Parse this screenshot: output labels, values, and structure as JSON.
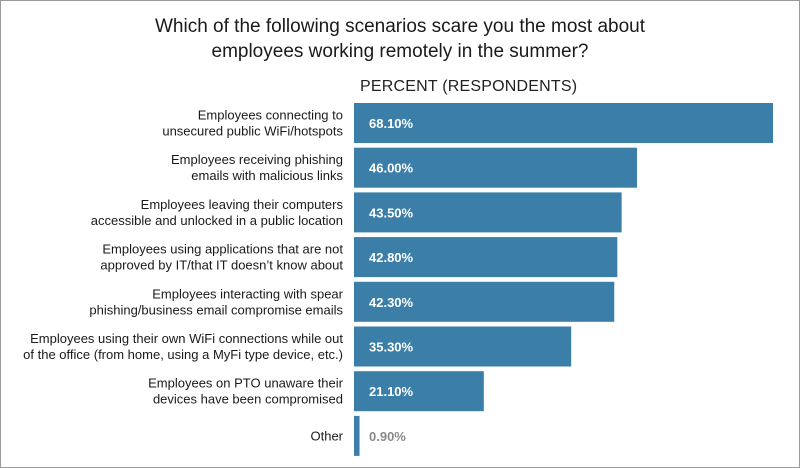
{
  "chart_data": {
    "type": "bar",
    "orientation": "horizontal",
    "title": [
      "Which of the following scenarios scare you the most about",
      "employees working remotely in the summer?"
    ],
    "xlabel": "PERCENT (RESPONDENTS)",
    "xlim": [
      0,
      68.1
    ],
    "grid": false,
    "bar_color": "#3b7ea8",
    "categories": [
      [
        "Employees connecting to",
        "unsecured public WiFi/hotspots"
      ],
      [
        "Employees receiving phishing",
        "emails with malicious links"
      ],
      [
        "Employees leaving their computers",
        "accessible and unlocked in a public location"
      ],
      [
        "Employees using applications that are not",
        "approved by IT/that IT doesn’t know about"
      ],
      [
        "Employees interacting with spear",
        "phishing/business email compromise emails"
      ],
      [
        "Employees using their own WiFi connections while out",
        "of the office (from home, using a MyFi type device, etc.)"
      ],
      [
        "Employees on PTO unaware their",
        "devices have been compromised"
      ],
      [
        "Other"
      ]
    ],
    "values": [
      68.1,
      46.0,
      43.5,
      42.8,
      42.3,
      35.3,
      21.1,
      0.9
    ],
    "value_labels": [
      "68.10%",
      "46.00%",
      "43.50%",
      "42.80%",
      "42.30%",
      "35.30%",
      "21.10%",
      "0.90%"
    ]
  }
}
